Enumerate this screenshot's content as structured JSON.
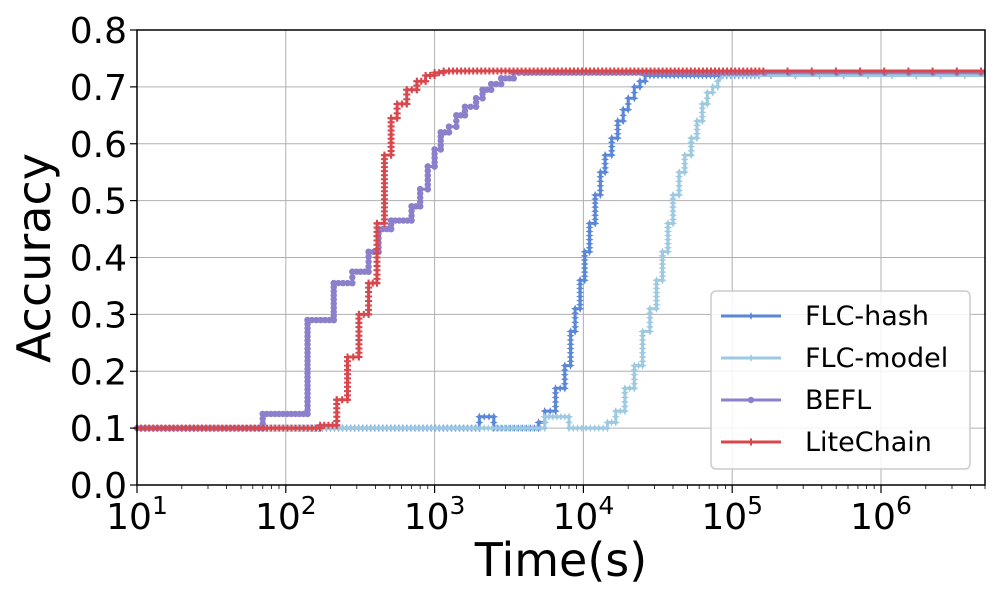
{
  "chart_data": {
    "type": "line",
    "xscale": "log",
    "xlabel": "Time(s)",
    "ylabel": "Accuracy",
    "xlim": [
      10,
      5000000
    ],
    "ylim": [
      0,
      0.8
    ],
    "grid": true,
    "legend_position": "bottom-right",
    "x_ticks": [
      {
        "value": 10,
        "base": "10",
        "exp": "1"
      },
      {
        "value": 100,
        "base": "10",
        "exp": "2"
      },
      {
        "value": 1000,
        "base": "10",
        "exp": "3"
      },
      {
        "value": 10000,
        "base": "10",
        "exp": "4"
      },
      {
        "value": 100000,
        "base": "10",
        "exp": "5"
      },
      {
        "value": 1000000,
        "base": "10",
        "exp": "6"
      }
    ],
    "y_ticks": [
      "0.0",
      "0.1",
      "0.2",
      "0.3",
      "0.4",
      "0.5",
      "0.6",
      "0.7",
      "0.8"
    ],
    "series": [
      {
        "name": "FLC-hash",
        "color": "#5b87d9",
        "marker": "star",
        "x": [
          10,
          2000,
          2000,
          2500,
          2500,
          5000,
          5000,
          5500,
          5500,
          6500,
          6500,
          7500,
          7500,
          8200,
          8200,
          8800,
          8800,
          9500,
          9500,
          10200,
          10200,
          11000,
          11000,
          12000,
          12000,
          13000,
          13000,
          14000,
          14000,
          15500,
          15500,
          17000,
          17000,
          18500,
          18500,
          20000,
          20000,
          22000,
          22000,
          24000,
          24000,
          26000,
          26000,
          28000,
          5000000
        ],
        "y": [
          0.1,
          0.1,
          0.12,
          0.12,
          0.1,
          0.1,
          0.11,
          0.11,
          0.13,
          0.13,
          0.17,
          0.17,
          0.21,
          0.21,
          0.27,
          0.27,
          0.31,
          0.31,
          0.36,
          0.36,
          0.41,
          0.41,
          0.46,
          0.46,
          0.51,
          0.51,
          0.55,
          0.55,
          0.58,
          0.58,
          0.61,
          0.61,
          0.64,
          0.64,
          0.66,
          0.66,
          0.68,
          0.68,
          0.7,
          0.7,
          0.71,
          0.71,
          0.72,
          0.72,
          0.72
        ]
      },
      {
        "name": "FLC-model",
        "color": "#9ecae1",
        "marker": "star",
        "x": [
          10,
          5500,
          5500,
          8000,
          8000,
          14500,
          14500,
          16500,
          16500,
          19000,
          19000,
          22000,
          22000,
          25000,
          25000,
          28000,
          28000,
          31000,
          31000,
          34000,
          34000,
          37000,
          37000,
          40000,
          40000,
          44000,
          44000,
          48000,
          48000,
          53000,
          53000,
          58000,
          58000,
          63000,
          63000,
          68000,
          68000,
          74000,
          74000,
          80000,
          80000,
          87000,
          5000000
        ],
        "y": [
          0.1,
          0.1,
          0.12,
          0.12,
          0.1,
          0.1,
          0.11,
          0.11,
          0.13,
          0.13,
          0.17,
          0.17,
          0.21,
          0.21,
          0.27,
          0.27,
          0.31,
          0.31,
          0.36,
          0.36,
          0.41,
          0.41,
          0.46,
          0.46,
          0.51,
          0.51,
          0.55,
          0.55,
          0.58,
          0.58,
          0.61,
          0.61,
          0.64,
          0.64,
          0.67,
          0.67,
          0.69,
          0.69,
          0.7,
          0.7,
          0.71,
          0.72,
          0.72
        ]
      },
      {
        "name": "BEFL",
        "color": "#8c7fcc",
        "marker": "circle",
        "x": [
          10,
          70,
          70,
          140,
          140,
          210,
          210,
          280,
          280,
          360,
          360,
          420,
          420,
          510,
          510,
          700,
          700,
          800,
          800,
          900,
          900,
          1000,
          1000,
          1100,
          1100,
          1250,
          1250,
          1400,
          1400,
          1600,
          1600,
          1900,
          1900,
          2100,
          2100,
          2400,
          2400,
          2800,
          2800,
          3400,
          3400,
          4000,
          5000000
        ],
        "y": [
          0.1,
          0.1,
          0.125,
          0.125,
          0.29,
          0.29,
          0.355,
          0.355,
          0.375,
          0.375,
          0.41,
          0.41,
          0.45,
          0.45,
          0.465,
          0.465,
          0.49,
          0.49,
          0.52,
          0.52,
          0.56,
          0.56,
          0.59,
          0.59,
          0.62,
          0.62,
          0.63,
          0.63,
          0.65,
          0.65,
          0.665,
          0.665,
          0.68,
          0.68,
          0.695,
          0.695,
          0.705,
          0.705,
          0.715,
          0.715,
          0.725,
          0.725,
          0.725
        ]
      },
      {
        "name": "LiteChain",
        "color": "#d9474d",
        "marker": "plus",
        "x": [
          10,
          170,
          170,
          220,
          220,
          260,
          260,
          310,
          310,
          360,
          360,
          410,
          410,
          460,
          460,
          510,
          510,
          560,
          560,
          650,
          650,
          760,
          760,
          870,
          870,
          1000,
          1000,
          1150,
          1150,
          1250,
          5000000
        ],
        "y": [
          0.1,
          0.1,
          0.105,
          0.105,
          0.15,
          0.15,
          0.225,
          0.225,
          0.3,
          0.3,
          0.355,
          0.355,
          0.46,
          0.46,
          0.58,
          0.58,
          0.645,
          0.645,
          0.67,
          0.67,
          0.695,
          0.695,
          0.71,
          0.71,
          0.72,
          0.72,
          0.725,
          0.725,
          0.728,
          0.728,
          0.728
        ]
      }
    ]
  }
}
